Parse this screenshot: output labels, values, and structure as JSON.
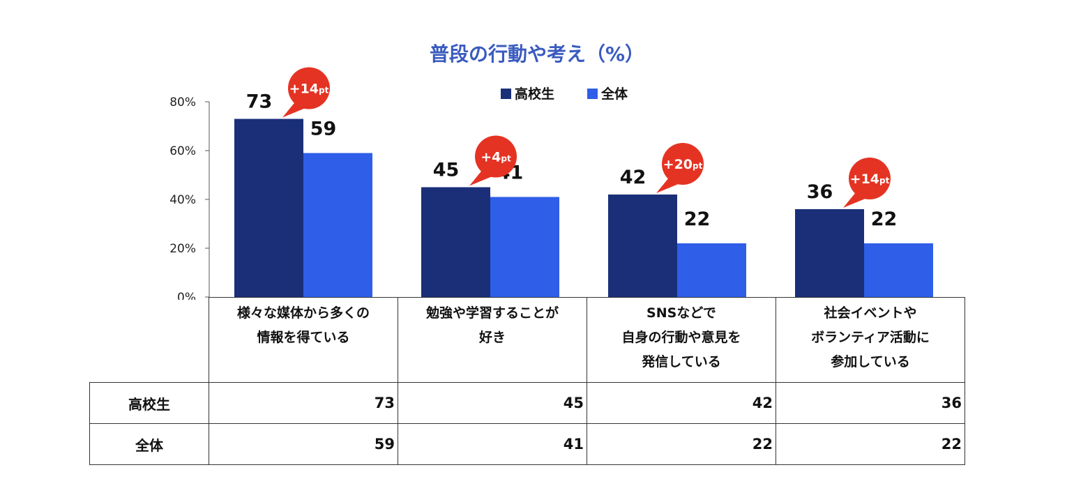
{
  "chart_data": {
    "type": "bar",
    "title": "普段の行動や考え（%）",
    "categories": [
      "様々な媒体から多くの情報を得ている",
      "勉強や学習することが好き",
      "SNSなどで自身の行動や意見を発信している",
      "社会イベントやボランティア活動に参加している"
    ],
    "series": [
      {
        "name": "高校生",
        "values": [
          73,
          45,
          42,
          36
        ]
      },
      {
        "name": "全体",
        "values": [
          59,
          41,
          22,
          22
        ]
      }
    ],
    "differences": [
      {
        "sign": "+",
        "number": "14",
        "unit": "pt"
      },
      {
        "sign": "+",
        "number": "4",
        "unit": "pt"
      },
      {
        "sign": "+",
        "number": "20",
        "unit": "pt"
      },
      {
        "sign": "+",
        "number": "14",
        "unit": "pt"
      }
    ],
    "yticks": [
      "0%",
      "20%",
      "40%",
      "60%",
      "80%"
    ],
    "ylim": [
      0,
      80
    ],
    "legend_position": "top-center",
    "grid": false,
    "colors": {
      "高校生": "#1a2f78",
      "全体": "#2f5ee8",
      "badge": "#e53323",
      "title": "#3a5bbf"
    }
  },
  "table": {
    "category_lines": [
      [
        "様々な媒体から多くの",
        "情報を得ている"
      ],
      [
        "勉強や学習することが",
        "好き"
      ],
      [
        "SNSなどで",
        "自身の行動や意見を",
        "発信している"
      ],
      [
        "社会イベントや",
        "ボランティア活動に",
        "参加している"
      ]
    ],
    "rows": [
      {
        "label": "高校生",
        "values": [
          "73",
          "45",
          "42",
          "36"
        ]
      },
      {
        "label": "全体",
        "values": [
          "59",
          "41",
          "22",
          "22"
        ]
      }
    ]
  }
}
